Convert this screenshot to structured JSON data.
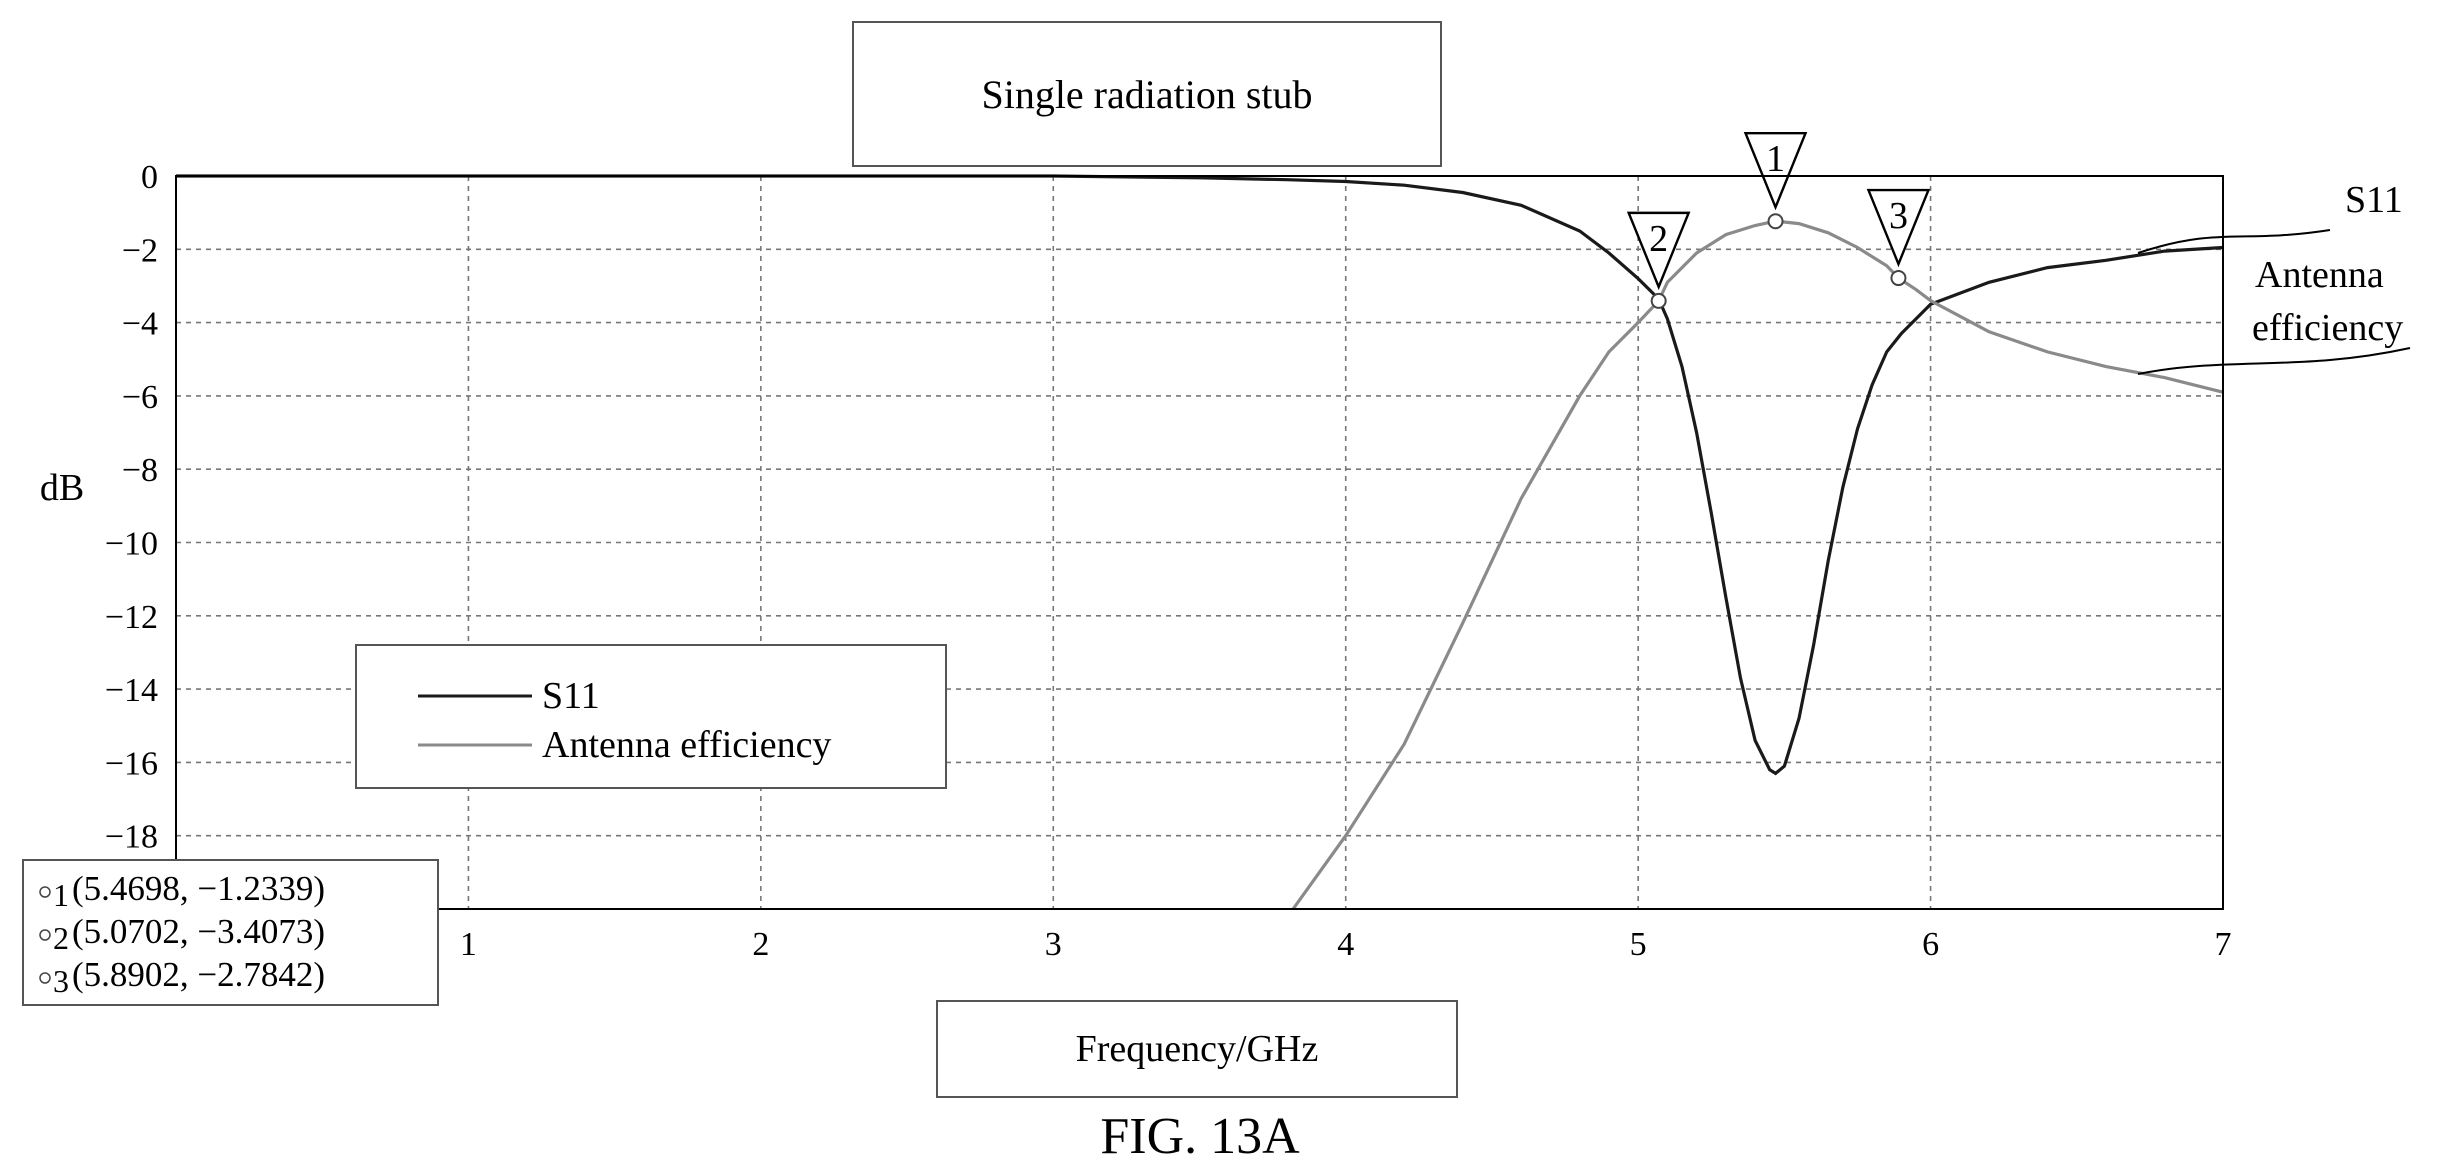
{
  "chart_data": {
    "type": "line",
    "title": "Single radiation stub",
    "xlabel": "Frequency/GHz",
    "ylabel": "dB",
    "caption": "FIG. 13A",
    "xlim": [
      0,
      7
    ],
    "ylim": [
      -20,
      0
    ],
    "x_ticks": [
      "1",
      "2",
      "3",
      "4",
      "5",
      "6",
      "7"
    ],
    "y_ticks": [
      "0",
      "−2",
      "−4",
      "−6",
      "−8",
      "−10",
      "−12",
      "−14",
      "−16",
      "−18"
    ],
    "y_tick_values": [
      0,
      -2,
      -4,
      -6,
      -8,
      -10,
      -12,
      -14,
      -16,
      -18
    ],
    "grid": true,
    "legend_position": "left",
    "series": [
      {
        "name": "S11",
        "color": "#1a1a1a",
        "x": [
          0,
          1,
          2,
          3,
          3.5,
          3.8,
          4.0,
          4.2,
          4.4,
          4.6,
          4.8,
          4.9,
          5.0,
          5.07,
          5.1,
          5.15,
          5.2,
          5.25,
          5.3,
          5.35,
          5.4,
          5.45,
          5.47,
          5.5,
          5.55,
          5.6,
          5.65,
          5.7,
          5.75,
          5.8,
          5.85,
          5.9,
          6.0,
          6.2,
          6.4,
          6.6,
          6.8,
          7.0
        ],
        "values": [
          0.0,
          0.0,
          0.0,
          0.0,
          -0.05,
          -0.1,
          -0.15,
          -0.25,
          -0.45,
          -0.8,
          -1.5,
          -2.1,
          -2.8,
          -3.35,
          -3.9,
          -5.2,
          -7.0,
          -9.2,
          -11.5,
          -13.7,
          -15.4,
          -16.2,
          -16.3,
          -16.1,
          -14.8,
          -12.8,
          -10.5,
          -8.5,
          -6.9,
          -5.7,
          -4.8,
          -4.3,
          -3.5,
          -2.9,
          -2.5,
          -2.3,
          -2.05,
          -1.95
        ]
      },
      {
        "name": "Antenna efficiency",
        "color": "#8a8a8a",
        "x": [
          3.82,
          4.0,
          4.2,
          4.4,
          4.6,
          4.8,
          4.9,
          5.0,
          5.07,
          5.1,
          5.2,
          5.3,
          5.4,
          5.47,
          5.55,
          5.65,
          5.75,
          5.85,
          5.89,
          5.95,
          6.0,
          6.2,
          6.4,
          6.6,
          6.8,
          7.0
        ],
        "values": [
          -20.0,
          -18.0,
          -15.5,
          -12.2,
          -8.8,
          -6.0,
          -4.8,
          -4.0,
          -3.41,
          -2.9,
          -2.1,
          -1.6,
          -1.35,
          -1.23,
          -1.3,
          -1.55,
          -1.95,
          -2.45,
          -2.78,
          -3.1,
          -3.4,
          -4.25,
          -4.8,
          -5.2,
          -5.5,
          -5.9
        ]
      }
    ],
    "markers": [
      {
        "label": "1",
        "x": 5.4698,
        "y": -1.2339,
        "readout": "(5.4698, −1.2339)"
      },
      {
        "label": "2",
        "x": 5.0702,
        "y": -3.4073,
        "readout": "(5.0702, −3.4073)"
      },
      {
        "label": "3",
        "x": 5.8902,
        "y": -2.7842,
        "readout": "(5.8902, −2.7842)"
      }
    ],
    "callouts": [
      "S11",
      "Antenna",
      "efficiency"
    ]
  }
}
